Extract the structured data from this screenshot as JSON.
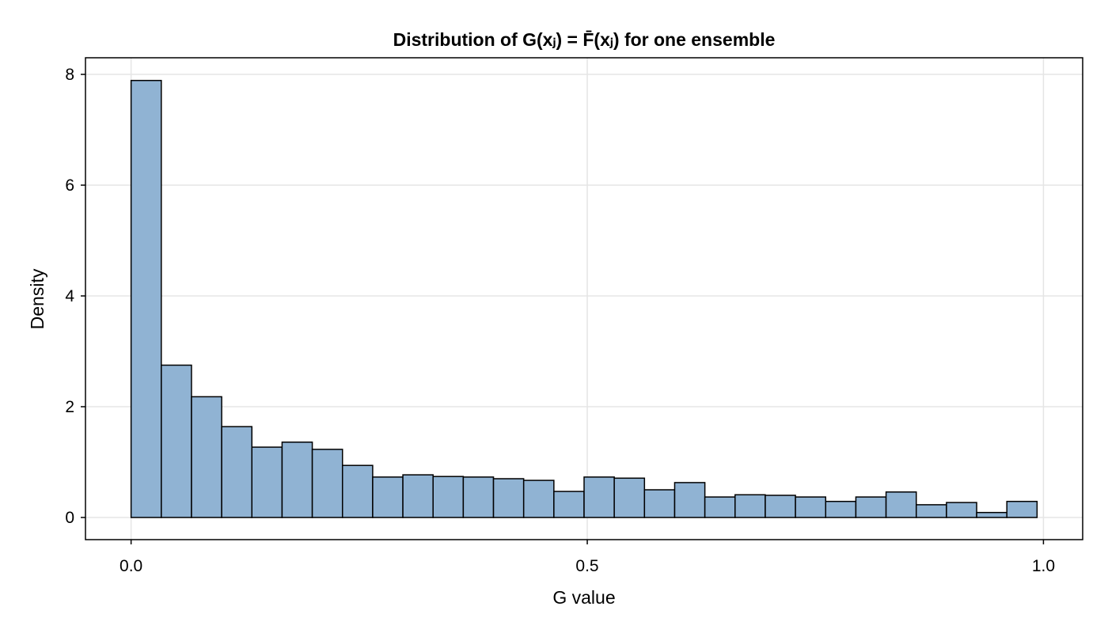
{
  "chart_data": {
    "type": "bar",
    "subtype": "histogram",
    "title": "Distribution of G(xⱼ) = F̄(xⱼ) for one ensemble",
    "xlabel": "G value",
    "ylabel": "Density",
    "xlim": [
      -0.05,
      1.043
    ],
    "ylim": [
      -0.4,
      8.3
    ],
    "xticks": [
      0.0,
      0.5,
      1.0
    ],
    "xtick_labels": [
      "0.0",
      "0.5",
      "1.0"
    ],
    "yticks": [
      0,
      2,
      4,
      6,
      8
    ],
    "ytick_labels": [
      "0",
      "2",
      "4",
      "6",
      "8"
    ],
    "grid": true,
    "bin_start": 0.0,
    "bin_width": 0.0331,
    "values": [
      7.89,
      2.75,
      2.18,
      1.64,
      1.27,
      1.36,
      1.23,
      0.94,
      0.73,
      0.77,
      0.74,
      0.73,
      0.7,
      0.67,
      0.47,
      0.73,
      0.71,
      0.5,
      0.63,
      0.37,
      0.41,
      0.4,
      0.37,
      0.29,
      0.37,
      0.46,
      0.23,
      0.27,
      0.09,
      0.29
    ],
    "colors": {
      "bar_fill": "#90b3d3",
      "bar_stroke": "#000000",
      "grid": "#e5e5e5"
    }
  }
}
